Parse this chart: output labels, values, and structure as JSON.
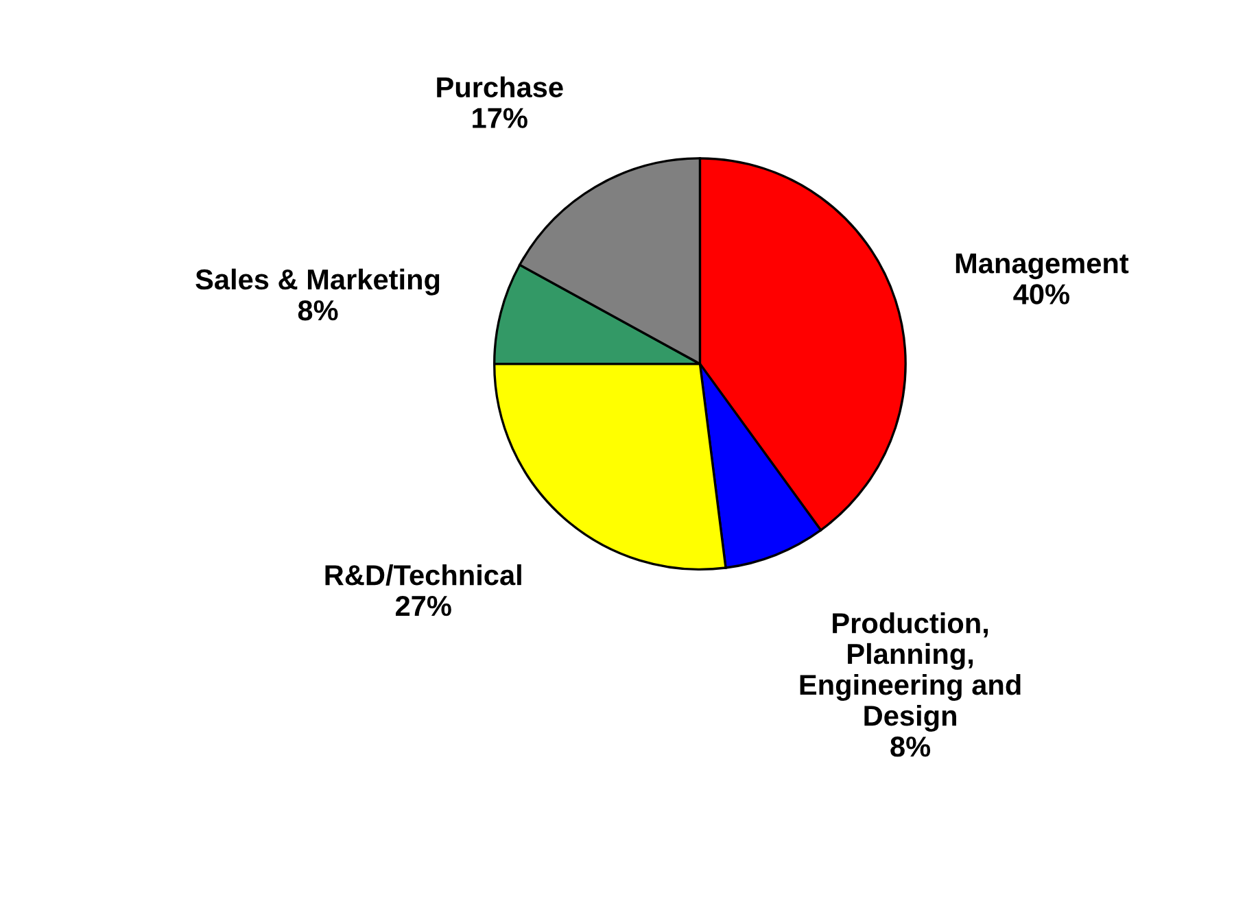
{
  "chart_data": {
    "type": "pie",
    "categories": [
      "Management",
      "Production,\nPlanning,\nEngineering and\nDesign",
      "R&D/Technical",
      "Sales & Marketing",
      "Purchase"
    ],
    "values": [
      40,
      8,
      27,
      8,
      17
    ],
    "value_labels": [
      "40%",
      "8%",
      "27%",
      "8%",
      "17%"
    ],
    "colors": [
      "#ff0000",
      "#0000ff",
      "#ffff00",
      "#339966",
      "#808080"
    ]
  }
}
